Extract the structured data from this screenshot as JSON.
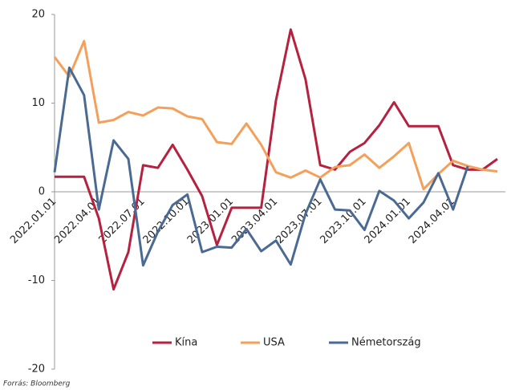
{
  "chart_data": {
    "type": "line",
    "categories": [
      "2022.01.01",
      null,
      null,
      "2022.04.01",
      null,
      null,
      "2022.07.01",
      null,
      null,
      "2022.10.01",
      null,
      null,
      "2023.01.01",
      null,
      null,
      "2023.04.01",
      null,
      null,
      "2023.07.01",
      null,
      null,
      "2023.10.01",
      null,
      null,
      "2024.01.01",
      null,
      null,
      "2024.04.01",
      null,
      null,
      null
    ],
    "series": [
      {
        "name": "Kína",
        "color": "#b5213f",
        "values": [
          1.7,
          1.7,
          1.7,
          -3,
          -11,
          -6.8,
          3,
          2.7,
          5.3,
          2.5,
          -0.5,
          -6,
          -1.8,
          -1.8,
          -1.8,
          10.3,
          18.3,
          12.7,
          3,
          2.5,
          4.5,
          5.5,
          7.5,
          10.1,
          7.4,
          7.4,
          7.4,
          3,
          2.5,
          2.5,
          3.7
        ]
      },
      {
        "name": "USA",
        "color": "#f5a05a",
        "values": [
          15.2,
          13,
          17,
          7.8,
          8.1,
          9,
          8.6,
          9.5,
          9.4,
          8.5,
          8.2,
          5.6,
          5.4,
          7.7,
          5.3,
          2.2,
          1.6,
          2.4,
          1.6,
          2.8,
          3,
          4.2,
          2.7,
          4,
          5.5,
          0.3,
          2,
          3.5,
          2.9,
          2.5,
          2.3
        ]
      },
      {
        "name": "Németország",
        "color": "#4a6a94",
        "values": [
          2.2,
          14,
          10.9,
          -2,
          5.8,
          3.7,
          -8.3,
          -4.5,
          -1.5,
          -0.3,
          -6.8,
          -6.2,
          -6.3,
          -4.2,
          -6.7,
          -5.5,
          -8.2,
          -2.5,
          1.4,
          -2,
          -2.1,
          -4.3,
          0.1,
          -1,
          -3,
          -1.2,
          2.1,
          -2,
          2.9,
          null,
          null
        ]
      }
    ],
    "ylim": [
      -20,
      20
    ],
    "yticks": [
      -20,
      -10,
      0,
      10,
      20
    ],
    "source": "Forrás: Bloomberg"
  }
}
